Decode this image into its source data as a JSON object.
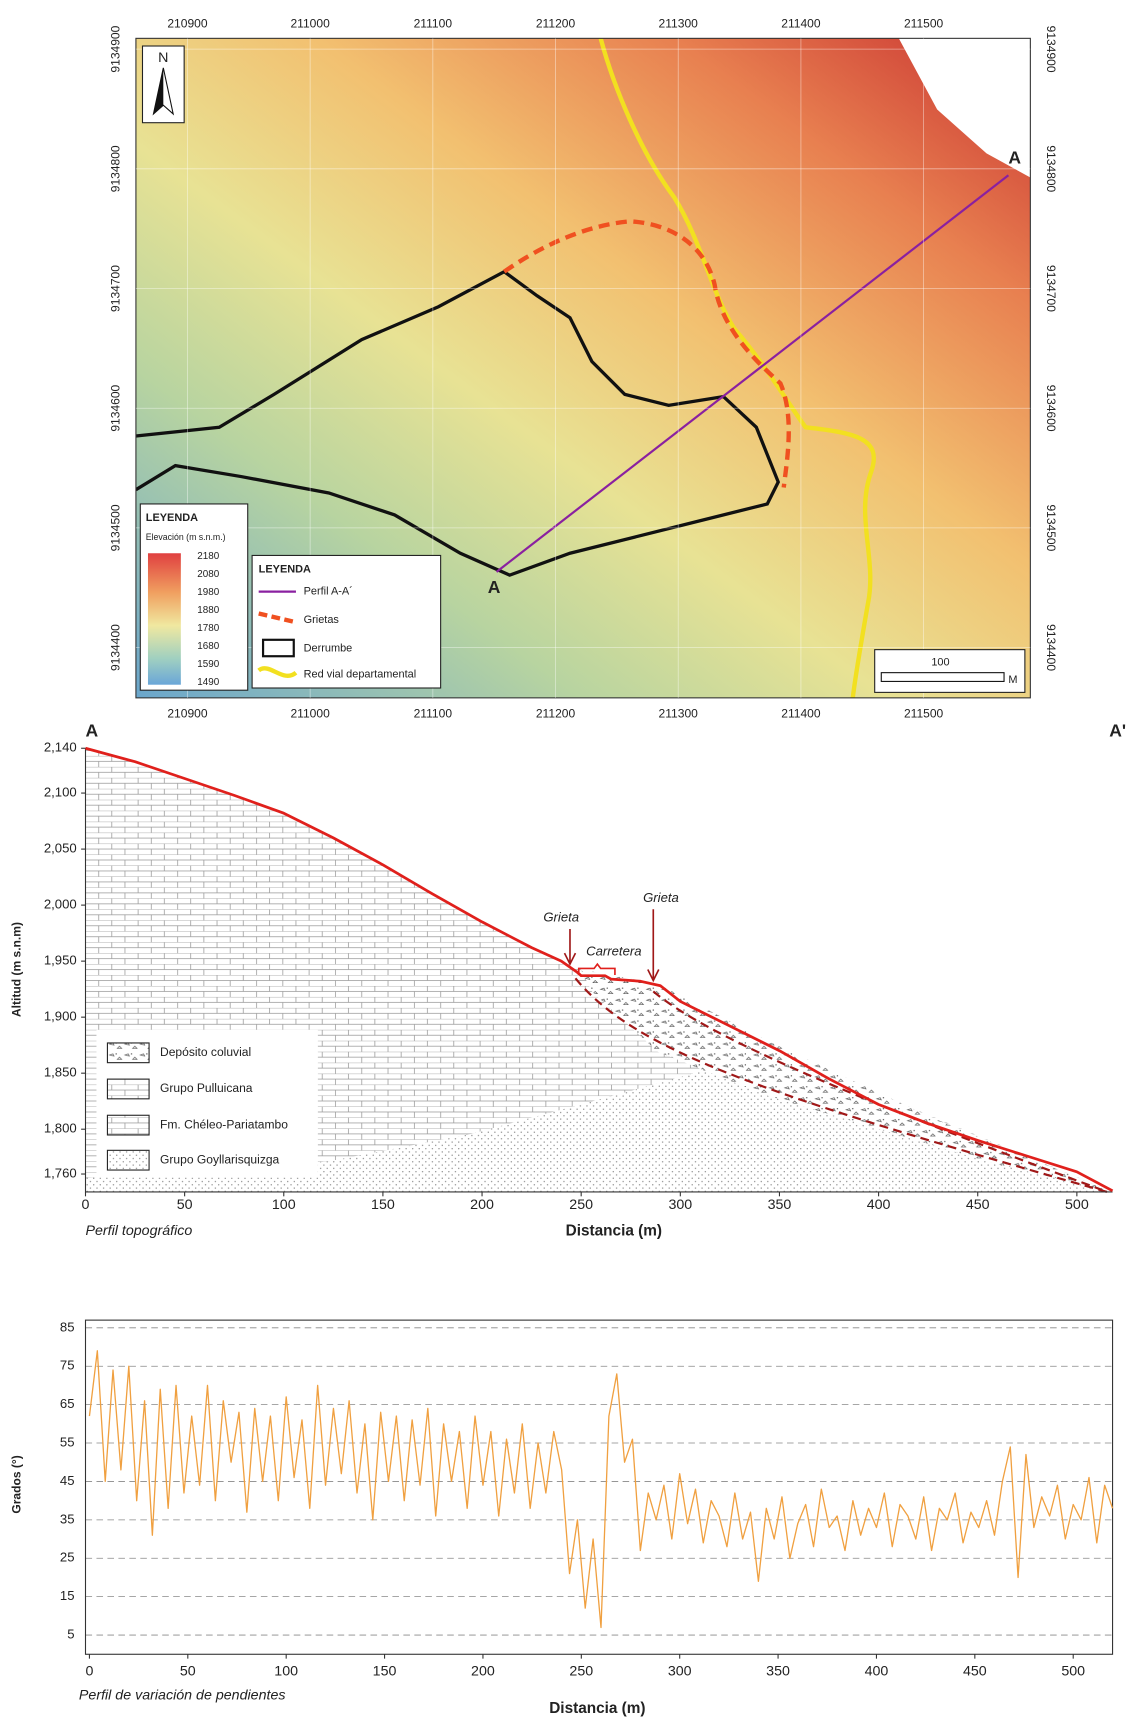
{
  "map": {
    "north": "N",
    "xlim": [
      210858,
      211587
    ],
    "ylim": [
      9134358,
      9134909
    ],
    "xticks": [
      210900,
      211000,
      211100,
      211200,
      211300,
      211400,
      211500
    ],
    "yticks": [
      9134400,
      9134500,
      9134600,
      9134700,
      9134800,
      9134900
    ],
    "point_start": "A",
    "point_end": "A",
    "elevation_legend": {
      "title": "LEYENDA",
      "subtitle": "Elevación (m s.n.m.)",
      "labels": [
        2180,
        2080,
        1980,
        1880,
        1780,
        1680,
        1590,
        1490
      ]
    },
    "features_legend": {
      "title": "LEYENDA",
      "items": [
        "Perfil A-A´",
        "Grietas",
        "Derrumbe",
        "Red vial departamental"
      ]
    },
    "scale_bar": {
      "length": 100,
      "unit": "M"
    }
  },
  "chart_data": [
    {
      "type": "line",
      "point_labels": [
        "A",
        "A'"
      ],
      "x_label": "Distancia (m)",
      "y_label": "Altitud (m s.n.m)",
      "caption": "Perfil topográfico",
      "x": [
        0,
        25,
        50,
        75,
        100,
        125,
        150,
        175,
        200,
        225,
        240,
        248,
        250,
        262,
        265,
        280,
        290,
        300,
        325,
        350,
        375,
        400,
        425,
        450,
        475,
        500,
        518
      ],
      "series": [
        {
          "color": "#e0201c",
          "values": [
            2140,
            2128,
            2113,
            2098,
            2082,
            2060,
            2036,
            2010,
            1985,
            1962,
            1950,
            1940,
            1937,
            1937,
            1934,
            1932,
            1928,
            1914,
            1892,
            1870,
            1845,
            1822,
            1805,
            1790,
            1776,
            1762,
            1745
          ]
        }
      ],
      "xlim": [
        0,
        518
      ],
      "ylim": [
        1744,
        2140
      ],
      "xticks": [
        0,
        50,
        100,
        150,
        200,
        250,
        300,
        350,
        400,
        450,
        500
      ],
      "yticks": [
        {
          "value": 2140,
          "label": "2,140"
        },
        {
          "value": 2100,
          "label": "2,100"
        },
        {
          "value": 2050,
          "label": "2,050"
        },
        {
          "value": 2000,
          "label": "2,000"
        },
        {
          "value": 1950,
          "label": "1,950"
        },
        {
          "value": 1900,
          "label": "1,900"
        },
        {
          "value": 1850,
          "label": "1,850"
        },
        {
          "value": 1800,
          "label": "1,800"
        },
        {
          "value": 1760,
          "label": "1,760"
        }
      ],
      "annotations": [
        "Grieta",
        "Grieta",
        "Carretera"
      ],
      "legend": [
        "Depósito coluvial",
        "Grupo Pulluicana",
        "Fm. Chéleo-Pariatambo",
        "Grupo Goyllarisquizga"
      ]
    },
    {
      "type": "line",
      "x_label": "Distancia (m)",
      "y_label": "Grados (°)",
      "caption": "Perfil de variación de pendientes",
      "x": [
        0,
        4,
        8,
        12,
        16,
        20,
        24,
        28,
        32,
        36,
        40,
        44,
        48,
        52,
        56,
        60,
        64,
        68,
        72,
        76,
        80,
        84,
        88,
        92,
        96,
        100,
        104,
        108,
        112,
        116,
        120,
        124,
        128,
        132,
        136,
        140,
        144,
        148,
        152,
        156,
        160,
        164,
        168,
        172,
        176,
        180,
        184,
        188,
        192,
        196,
        200,
        204,
        208,
        212,
        216,
        220,
        224,
        228,
        232,
        236,
        240,
        244,
        248,
        252,
        256,
        260,
        264,
        268,
        272,
        276,
        280,
        284,
        288,
        292,
        296,
        300,
        304,
        308,
        312,
        316,
        320,
        324,
        328,
        332,
        336,
        340,
        344,
        348,
        352,
        356,
        360,
        364,
        368,
        372,
        376,
        380,
        384,
        388,
        392,
        396,
        400,
        404,
        408,
        412,
        416,
        420,
        424,
        428,
        432,
        436,
        440,
        444,
        448,
        452,
        456,
        460,
        464,
        468,
        472,
        476,
        480,
        484,
        488,
        492,
        496,
        500,
        504,
        508,
        512,
        516,
        520
      ],
      "series": [
        {
          "color": "#f0a040",
          "values": [
            62,
            79,
            45,
            74,
            48,
            75,
            40,
            66,
            31,
            69,
            38,
            70,
            42,
            62,
            44,
            70,
            40,
            66,
            50,
            63,
            37,
            64,
            45,
            62,
            40,
            67,
            46,
            61,
            38,
            70,
            44,
            64,
            47,
            66,
            42,
            60,
            35,
            63,
            45,
            62,
            40,
            61,
            44,
            64,
            36,
            60,
            45,
            58,
            38,
            62,
            44,
            58,
            36,
            56,
            42,
            60,
            38,
            55,
            42,
            58,
            48,
            21,
            35,
            12,
            30,
            7,
            62,
            73,
            50,
            56,
            27,
            42,
            35,
            44,
            30,
            47,
            34,
            43,
            29,
            40,
            36,
            28,
            42,
            30,
            37,
            19,
            38,
            30,
            41,
            25,
            34,
            39,
            28,
            43,
            33,
            36,
            27,
            40,
            31,
            38,
            33,
            42,
            28,
            39,
            36,
            30,
            41,
            27,
            38,
            35,
            42,
            29,
            37,
            33,
            40,
            31,
            45,
            54,
            20,
            52,
            33,
            41,
            36,
            44,
            30,
            39,
            35,
            46,
            29,
            44,
            38
          ]
        }
      ],
      "xlim": [
        -2,
        520
      ],
      "ylim": [
        0,
        87
      ],
      "xticks": [
        0,
        50,
        100,
        150,
        200,
        250,
        300,
        350,
        400,
        450,
        500
      ],
      "yticks": [
        5,
        15,
        25,
        35,
        45,
        55,
        65,
        75,
        85
      ],
      "grid": true
    }
  ]
}
